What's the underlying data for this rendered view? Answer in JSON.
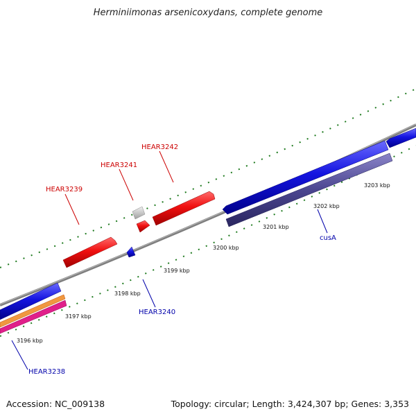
{
  "title": "Herminiimonas arsenicoxydans, complete genome",
  "footer": {
    "accession": "Accession: NC_009138",
    "topology": "Topology: circular; Length: 3,424,307 bp; Genes: 3,353"
  },
  "colors": {
    "backbone": "#8a8a8a",
    "tick": "#1e7a1e",
    "forward_gene": "#ee1111",
    "reverse_gene": "#1515dd",
    "reverse_feature": "#4b4690",
    "label_forward": "#cc0000",
    "label_reverse": "#0000aa"
  },
  "tick_labels": [
    "3196 kbp",
    "3197 kbp",
    "3198 kbp",
    "3199 kbp",
    "3200 kbp",
    "3201 kbp",
    "3202 kbp",
    "3203 kbp"
  ],
  "gene_labels": {
    "hear3239": "HEAR3239",
    "hear3241": "HEAR3241",
    "hear3242": "HEAR3242",
    "hear3240": "HEAR3240",
    "hear3238": "HEAR3238",
    "cusA": "cusA"
  }
}
